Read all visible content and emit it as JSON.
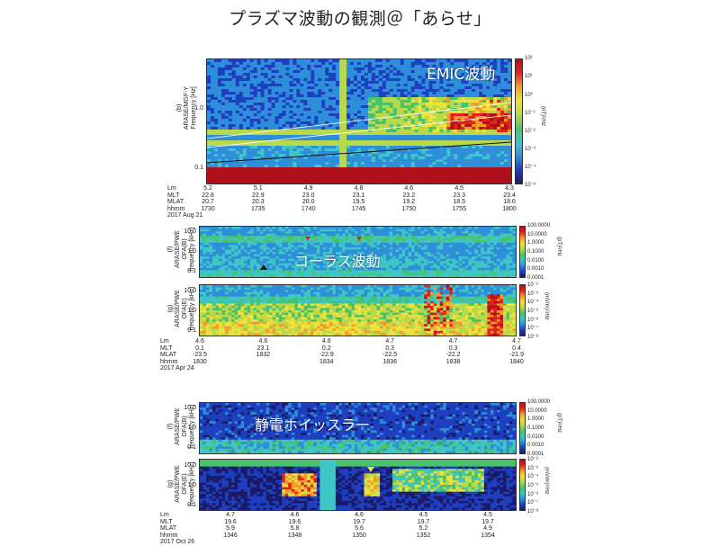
{
  "title": "プラズマ波動の観測＠「あらせ」",
  "colors": {
    "colormap": [
      "#1a1a66",
      "#1e3fbf",
      "#2f8ed9",
      "#3fc6c6",
      "#49c36a",
      "#b9d94a",
      "#f0e23d",
      "#f49a2b",
      "#e2231a",
      "#b0101a"
    ]
  },
  "panels": [
    {
      "id": "b",
      "ylabel": "(b)\nARASE/MGF-Y\nFrequency [Hz]",
      "yticks": [
        "1.0",
        "0.1"
      ],
      "overlay": "EMIC波動",
      "colorbar_ticks": [
        "10²",
        "10¹",
        "10⁰",
        "10⁻¹",
        "10⁻²",
        "10⁻³",
        "10⁻⁴",
        "10⁻⁵"
      ],
      "colorbar_label": "(nT)²/Hz"
    },
    {
      "id": "f1",
      "ylabel": "(f)\nARASE/PWE\nOFA(B)\nfrequency [kHz]",
      "yticks": [
        "10.0",
        "1.0",
        "0.1"
      ],
      "overlay": "コーラス波動",
      "colorbar_ticks": [
        "100.0000",
        "10.0000",
        "1.0000",
        "0.1000",
        "0.0100",
        "0.0010",
        "0.0001"
      ],
      "colorbar_label": "(pT)²/Hz"
    },
    {
      "id": "g1",
      "ylabel": "(g)\nARASE/PWE\nOFA(E)\nfrequency [kHz]",
      "yticks": [
        "10.0",
        "1.0",
        "0.1"
      ],
      "overlay": "",
      "colorbar_ticks": [
        "10⁻²",
        "10⁻³",
        "10⁻⁴",
        "10⁻⁵",
        "10⁻⁶",
        "10⁻⁷",
        "10⁻⁸"
      ],
      "colorbar_label": "(mV/m)²/Hz"
    },
    {
      "id": "f2",
      "ylabel": "(f)\nARASE/PWE\nOFA(B)\nfrequency [kHz]",
      "yticks": [
        "10.0",
        "1.0",
        "0.1"
      ],
      "overlay": "静電ホイッスラー",
      "colorbar_ticks": [
        "100.0000",
        "10.0000",
        "1.0000",
        "0.1000",
        "0.0100",
        "0.0010",
        "0.0001"
      ],
      "colorbar_label": "(pT)²/Hz"
    },
    {
      "id": "g2",
      "ylabel": "(g)\nARASE/PWE\nOFA(E)\nfrequency [kHz]",
      "yticks": [
        "10.0",
        "1.0",
        "0.1"
      ],
      "overlay": "",
      "colorbar_ticks": [
        "10⁻²",
        "10⁻³",
        "10⁻⁴",
        "10⁻⁵",
        "10⁻⁶",
        "10⁻⁷",
        "10⁻⁸"
      ],
      "colorbar_label": "(mV/m)²/Hz"
    }
  ],
  "ephemeris": [
    {
      "labels": "Lm\nMLT\nMLAT\nhhmm\n2017 Aug 21",
      "columns": [
        "5.2\n22.8\n20.7\n1730",
        "5.1\n22.9\n20.3\n1735",
        "4.9\n23.0\n20.0\n1740",
        "4.8\n23.1\n19.5\n1745",
        "4.6\n23.2\n19.2\n1750",
        "4.5\n23.3\n18.5\n1755",
        "4.3\n23.4\n18.0\n1800"
      ]
    },
    {
      "labels": "Lm\nMLT\nMLAT\nhhmm\n2017 Apr 24",
      "columns": [
        "4.6\n0.1\n-23.5\n1830",
        "4.6\n23.1\n1832",
        "4.6\n0.2\n-22.9\n1834",
        "4.7\n0.3\n-22.5\n1836",
        "4.7\n0.3\n-22.2\n1838",
        "4.7\n0.4\n-21.9\n1840"
      ]
    },
    {
      "labels": "Lm\nMLT\nMLAT\nhhmm\n2017 Oct 26",
      "columns": [
        "4.7\n19.6\n5.9\n1346",
        "4.6\n19.6\n5.8\n1348",
        "4.6\n19.7\n5.6\n1350",
        "4.5\n19.7\n5.2\n1352",
        "4.5\n19.7\n4.9\n1354"
      ]
    }
  ],
  "chart_data": [
    {
      "type": "heatmap",
      "title": "EMIC波動",
      "ylabel": "Frequency [Hz]",
      "y_scale": "log",
      "ylim": [
        0.1,
        7
      ],
      "x": [
        "1730",
        "1735",
        "1740",
        "1745",
        "1750",
        "1755",
        "1800"
      ],
      "date": "2017 Aug 21",
      "colorbar": {
        "label": "(nT)²/Hz",
        "range": [
          "10⁻⁵",
          "10²"
        ],
        "scale": "log"
      }
    },
    {
      "type": "heatmap",
      "title": "コーラス波動",
      "ylabel": "frequency [kHz]",
      "y_scale": "log",
      "ylim": [
        0.07,
        15
      ],
      "x": [
        "1830",
        "1832",
        "1834",
        "1836",
        "1838",
        "1840"
      ],
      "date": "2017 Apr 24",
      "colorbar": {
        "label": "(pT)²/Hz",
        "range": [
          "0.0001",
          "100.0000"
        ],
        "scale": "log"
      }
    },
    {
      "type": "heatmap",
      "ylabel": "frequency [kHz]",
      "y_scale": "log",
      "ylim": [
        0.07,
        15
      ],
      "x": [
        "1830",
        "1832",
        "1834",
        "1836",
        "1838",
        "1840"
      ],
      "date": "2017 Apr 24",
      "colorbar": {
        "label": "(mV/m)²/Hz",
        "range": [
          "10⁻⁸",
          "10⁻²"
        ],
        "scale": "log"
      }
    },
    {
      "type": "heatmap",
      "title": "静電ホイッスラー",
      "ylabel": "frequency [kHz]",
      "y_scale": "log",
      "ylim": [
        0.07,
        15
      ],
      "x": [
        "1346",
        "1348",
        "1350",
        "1352",
        "1354"
      ],
      "date": "2017 Oct 26",
      "colorbar": {
        "label": "(pT)²/Hz",
        "range": [
          "0.0001",
          "100.0000"
        ],
        "scale": "log"
      }
    },
    {
      "type": "heatmap",
      "ylabel": "frequency [kHz]",
      "y_scale": "log",
      "ylim": [
        0.07,
        15
      ],
      "x": [
        "1346",
        "1348",
        "1350",
        "1352",
        "1354"
      ],
      "date": "2017 Oct 26",
      "colorbar": {
        "label": "(mV/m)²/Hz",
        "range": [
          "10⁻⁸",
          "10⁻²"
        ],
        "scale": "log"
      }
    }
  ]
}
